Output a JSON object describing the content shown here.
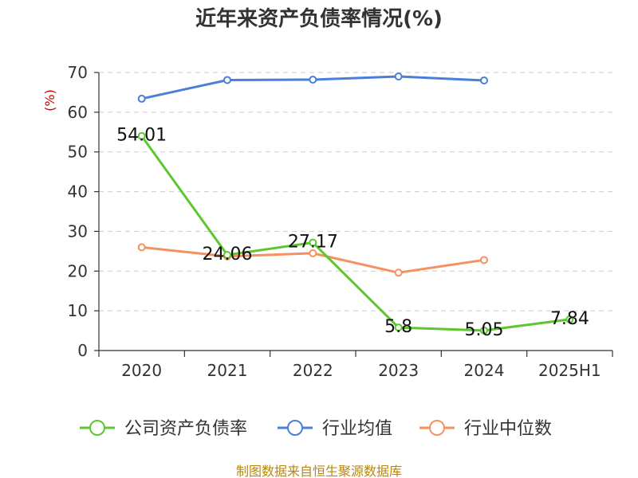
{
  "chart_data": {
    "type": "line",
    "title": "近年来资产负债率情况(%)",
    "ylabel": "(%)",
    "categories": [
      "2020",
      "2021",
      "2022",
      "2023",
      "2024",
      "2025H1"
    ],
    "ylim": [
      0,
      70
    ],
    "yticks": [
      0,
      10,
      20,
      30,
      40,
      50,
      60,
      70
    ],
    "grid": true,
    "legend_position": "bottom",
    "series": [
      {
        "name": "公司资产负债率",
        "color": "#5ec72f",
        "values": [
          54.01,
          24.06,
          27.17,
          5.8,
          5.05,
          7.84
        ],
        "labels": [
          "54.01",
          "24.06",
          "27.17",
          "5.8",
          "5.05",
          "7.84"
        ]
      },
      {
        "name": "行业均值",
        "color": "#4a7fd8",
        "values": [
          63.4,
          68.1,
          68.2,
          69.0,
          68.0,
          null
        ],
        "labels": []
      },
      {
        "name": "行业中位数",
        "color": "#f59160",
        "values": [
          26.0,
          23.7,
          24.5,
          19.6,
          22.8,
          null
        ],
        "labels": []
      }
    ]
  },
  "source_text": "制图数据来自恒生聚源数据库"
}
